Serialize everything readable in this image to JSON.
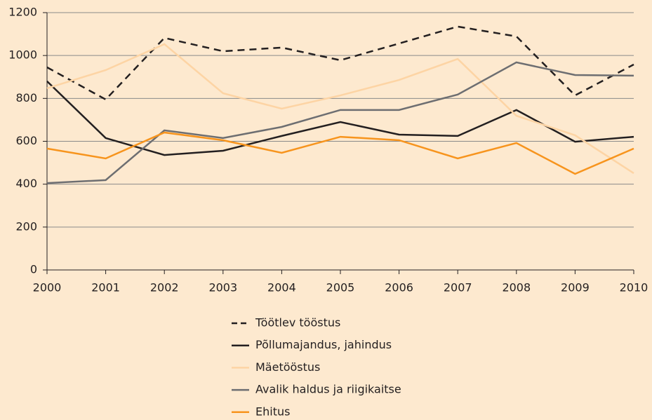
{
  "chart_data": {
    "type": "line",
    "x": [
      2000,
      2001,
      2002,
      2003,
      2004,
      2005,
      2006,
      2007,
      2008,
      2009,
      2010
    ],
    "xlim": [
      2000,
      2010
    ],
    "xticks": [
      2000,
      2001,
      2002,
      2003,
      2004,
      2005,
      2006,
      2007,
      2008,
      2009,
      2010
    ],
    "ylim": [
      0,
      1200
    ],
    "yticks": [
      0,
      200,
      400,
      600,
      800,
      1000,
      1200
    ],
    "grid": true,
    "legend": "bottom",
    "series": [
      {
        "name": "Töötlev tööstus",
        "color": "#231f20",
        "style": "dashed",
        "values": [
          945,
          795,
          1082,
          1020,
          1037,
          978,
          1056,
          1135,
          1089,
          814,
          958
        ]
      },
      {
        "name": "Põllumajandus, jahindus",
        "color": "#231f20",
        "style": "solid",
        "values": [
          880,
          615,
          536,
          556,
          625,
          690,
          631,
          625,
          746,
          598,
          621
        ]
      },
      {
        "name": "Mäetööstus",
        "color": "#fdd4a4",
        "style": "solid",
        "values": [
          847,
          932,
          1053,
          824,
          752,
          814,
          886,
          984,
          719,
          628,
          451
        ]
      },
      {
        "name": "Avalik haldus ja riigikaitse",
        "color": "#6d6e71",
        "style": "solid",
        "values": [
          405,
          419,
          651,
          615,
          667,
          746,
          746,
          818,
          968,
          909,
          906
        ]
      },
      {
        "name": "Ehitus",
        "color": "#f7941d",
        "style": "solid",
        "values": [
          566,
          520,
          641,
          605,
          546,
          621,
          605,
          520,
          592,
          448,
          566
        ]
      }
    ]
  }
}
